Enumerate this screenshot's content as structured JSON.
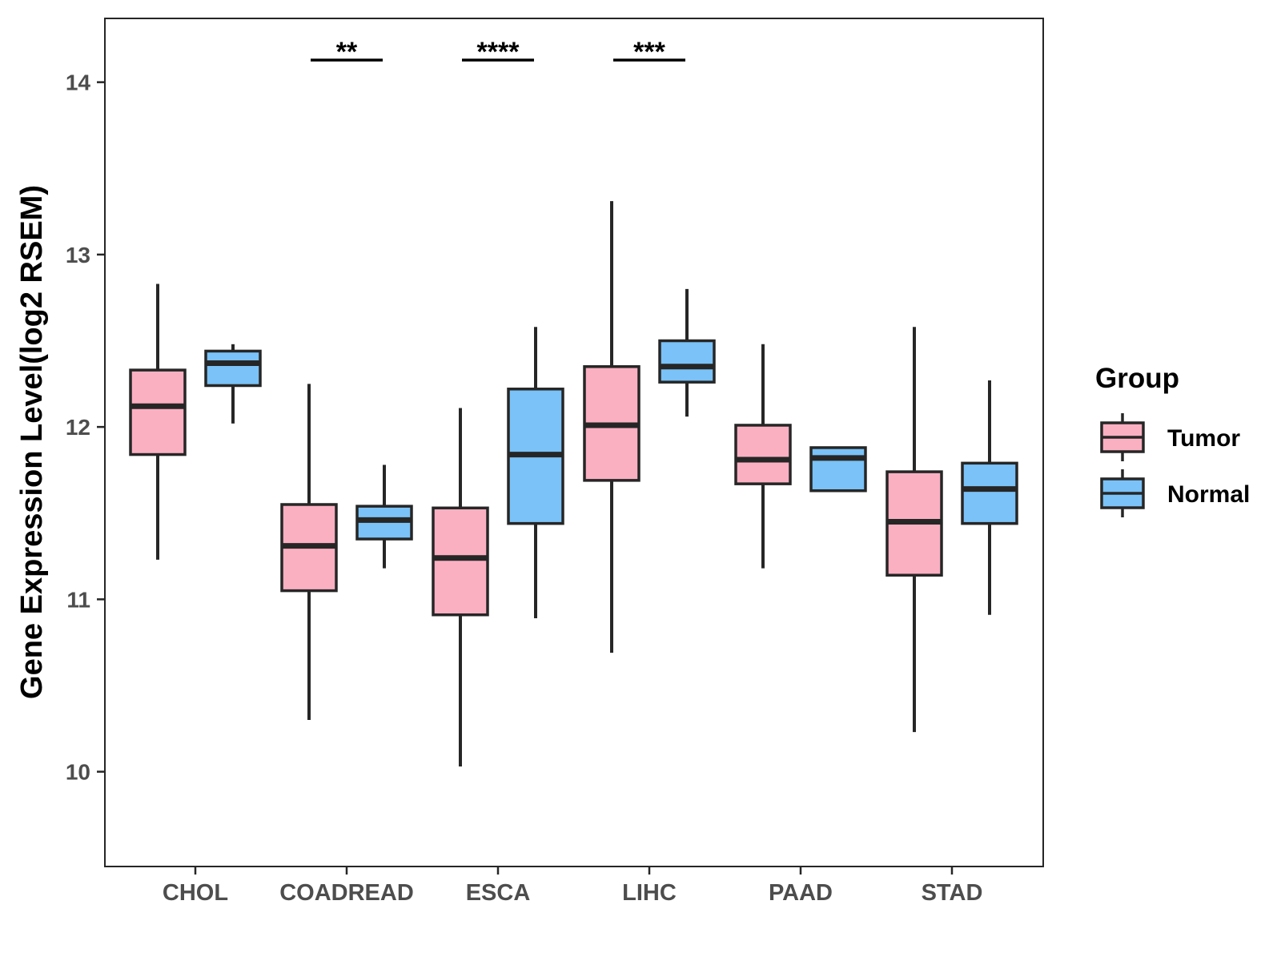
{
  "chart_data": {
    "type": "boxplot",
    "ylabel": "Gene Expression Level(log2 RSEM)",
    "xlabel": "",
    "ylim": [
      9.45,
      14.37
    ],
    "yticks": [
      10,
      11,
      12,
      13,
      14
    ],
    "categories": [
      "CHOL",
      "COADREAD",
      "ESCA",
      "LIHC",
      "PAAD",
      "STAD"
    ],
    "legend": {
      "title": "Group",
      "position": "right",
      "entries": [
        {
          "name": "Tumor",
          "color": "#fbb0c2"
        },
        {
          "name": "Normal",
          "color": "#7ac2f7"
        }
      ]
    },
    "series": [
      {
        "name": "Tumor",
        "color": "#fbb0c2",
        "boxes": [
          {
            "min": 11.23,
            "q1": 11.84,
            "median": 12.12,
            "q3": 12.33,
            "max": 12.83
          },
          {
            "min": 10.3,
            "q1": 11.05,
            "median": 11.31,
            "q3": 11.55,
            "max": 12.25
          },
          {
            "min": 10.03,
            "q1": 10.91,
            "median": 11.24,
            "q3": 11.53,
            "max": 12.11
          },
          {
            "min": 10.69,
            "q1": 11.69,
            "median": 12.01,
            "q3": 12.35,
            "max": 13.31
          },
          {
            "min": 11.18,
            "q1": 11.67,
            "median": 11.81,
            "q3": 12.01,
            "max": 12.48
          },
          {
            "min": 10.23,
            "q1": 11.14,
            "median": 11.45,
            "q3": 11.74,
            "max": 12.58
          }
        ]
      },
      {
        "name": "Normal",
        "color": "#7ac2f7",
        "boxes": [
          {
            "min": 12.02,
            "q1": 12.24,
            "median": 12.37,
            "q3": 12.44,
            "max": 12.48
          },
          {
            "min": 11.18,
            "q1": 11.35,
            "median": 11.46,
            "q3": 11.54,
            "max": 11.78
          },
          {
            "min": 10.89,
            "q1": 11.44,
            "median": 11.84,
            "q3": 12.22,
            "max": 12.58
          },
          {
            "min": 12.06,
            "q1": 12.26,
            "median": 12.35,
            "q3": 12.5,
            "max": 12.8
          },
          {
            "min": 11.63,
            "q1": 11.63,
            "median": 11.82,
            "q3": 11.88,
            "max": 11.88
          },
          {
            "min": 10.91,
            "q1": 11.44,
            "median": 11.64,
            "q3": 11.79,
            "max": 12.27
          }
        ]
      }
    ],
    "significance": [
      {
        "category": "CHOL",
        "label": ""
      },
      {
        "category": "COADREAD",
        "label": "**"
      },
      {
        "category": "ESCA",
        "label": "****"
      },
      {
        "category": "LIHC",
        "label": "***"
      },
      {
        "category": "PAAD",
        "label": ""
      },
      {
        "category": "STAD",
        "label": ""
      }
    ]
  }
}
